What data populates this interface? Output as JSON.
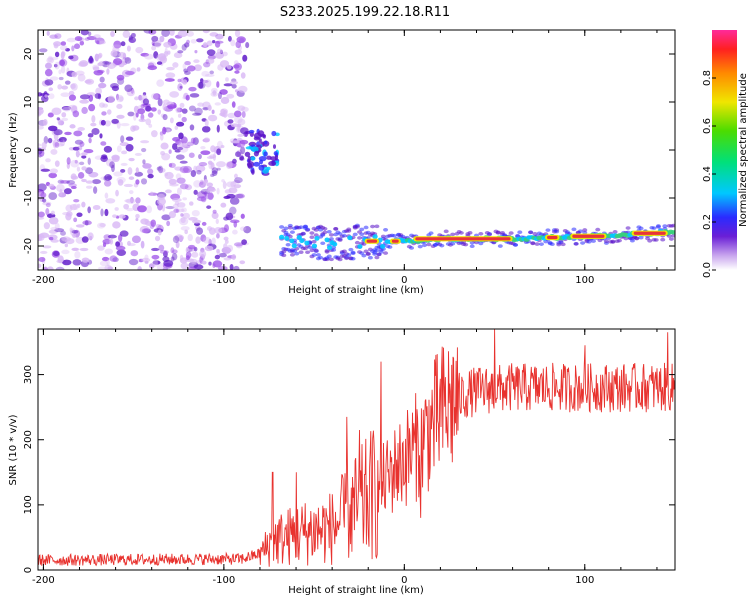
{
  "title": "S233.2025.199.22.18.R11",
  "colors": {
    "snr_line": "#e8322e",
    "spectrum_light": "#d9b8f5",
    "spectrum_mid": "#9b4de8",
    "spectrum_dark": "#5a12c8",
    "ridge_peak": "#e8323a"
  },
  "chart_data": [
    {
      "type": "heatmap",
      "xlabel": "Height of straight line (km)",
      "ylabel": "Frequency (Hz)",
      "xlim": [
        -203,
        150
      ],
      "ylim": [
        -25,
        25
      ],
      "xticks": [
        -200,
        -100,
        0,
        100
      ],
      "yticks": [
        -20,
        -10,
        0,
        10,
        20
      ],
      "colorbar": {
        "label": "Normalized spectral amplitude",
        "range": [
          0,
          1
        ],
        "ticks": [
          "0.0",
          "0.2",
          "0.4",
          "0.6",
          "0.8"
        ],
        "colormap": "rainbow"
      },
      "features": {
        "noise_region_x": [
          -203,
          -87
        ],
        "noise_pocket": {
          "x": [
            -87,
            -70
          ],
          "y": [
            -5,
            4
          ]
        },
        "ridge_x": [
          -68,
          150
        ],
        "ridge_freq": [
          [
            -68,
            -19
          ],
          [
            -40,
            -19.5
          ],
          [
            -20,
            -19
          ],
          [
            0,
            -19
          ],
          [
            20,
            -18.5
          ],
          [
            60,
            -18.5
          ],
          [
            100,
            -18
          ],
          [
            130,
            -17.5
          ],
          [
            150,
            -17
          ]
        ]
      }
    },
    {
      "type": "line",
      "xlabel": "Height of straight line (km)",
      "ylabel": "SNR (10 * v/v)",
      "xlim": [
        -203,
        150
      ],
      "ylim": [
        0,
        370
      ],
      "xticks": [
        -200,
        -100,
        0,
        100
      ],
      "yticks": [
        0,
        100,
        200,
        300
      ],
      "series": [
        {
          "mean_curve": [
            [
              -203,
              15
            ],
            [
              -90,
              17
            ],
            [
              -80,
              25
            ],
            [
              -72,
              45
            ],
            [
              -60,
              55
            ],
            [
              -40,
              65
            ],
            [
              -20,
              110
            ],
            [
              -10,
              140
            ],
            [
              0,
              170
            ],
            [
              10,
              200
            ],
            [
              20,
              240
            ],
            [
              30,
              265
            ],
            [
              40,
              275
            ],
            [
              60,
              280
            ],
            [
              100,
              280
            ],
            [
              150,
              280
            ]
          ],
          "peaks": [
            [
              -73,
              150
            ],
            [
              -60,
              150
            ],
            [
              -32,
              235
            ],
            [
              -25,
              215
            ],
            [
              -13,
              320
            ],
            [
              -5,
              180
            ],
            [
              9,
              80
            ],
            [
              50,
              370
            ],
            [
              100,
              345
            ],
            [
              146,
              365
            ]
          ]
        }
      ]
    }
  ]
}
